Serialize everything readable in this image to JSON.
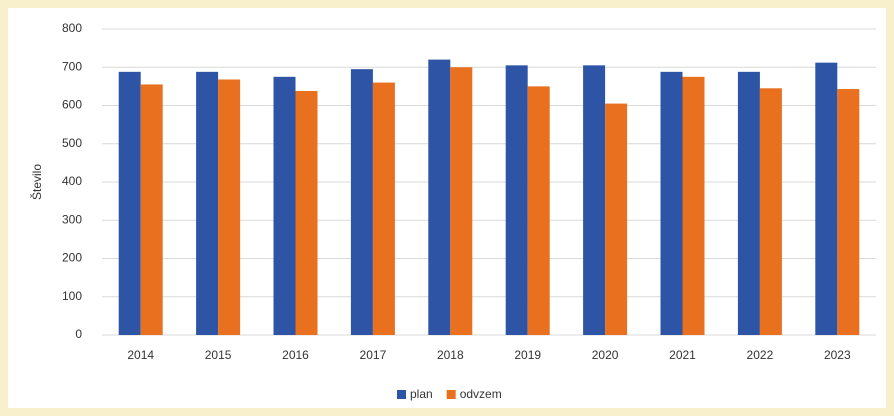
{
  "chart_data": {
    "type": "bar",
    "y_label": "Število",
    "categories": [
      "2014",
      "2015",
      "2016",
      "2017",
      "2018",
      "2019",
      "2020",
      "2021",
      "2022",
      "2023"
    ],
    "series": [
      {
        "name": "plan",
        "color": "#2e55a5",
        "values": [
          688,
          688,
          675,
          695,
          720,
          705,
          705,
          688,
          688,
          712
        ]
      },
      {
        "name": "odvzem",
        "color": "#e8701f",
        "values": [
          655,
          668,
          638,
          660,
          700,
          650,
          605,
          675,
          645,
          643
        ]
      }
    ],
    "ylim": [
      0,
      800
    ],
    "yticks": [
      0,
      100,
      200,
      300,
      400,
      500,
      600,
      700,
      800
    ],
    "grid": true,
    "legend": "bottom"
  }
}
